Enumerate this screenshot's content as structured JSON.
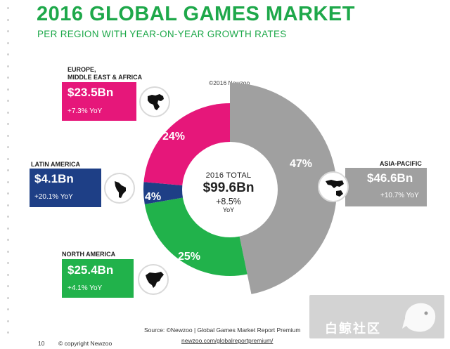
{
  "header": {
    "title": "2016 GLOBAL GAMES MARKET",
    "subtitle": "PER REGION WITH YEAR-ON-YEAR GROWTH RATES",
    "chart_copyright": "©2016 Newzoo"
  },
  "center": {
    "label": "2016 TOTAL",
    "value": "$99.6Bn",
    "growth": "+8.5%",
    "growth_unit": "YoY"
  },
  "chart_data": {
    "type": "pie",
    "title": "2016 GLOBAL GAMES MARKET",
    "subtitle": "PER REGION WITH YEAR-ON-YEAR GROWTH RATES",
    "unit": "Bn",
    "total": 99.6,
    "total_growth_pct": 8.5,
    "categories": [
      "Asia-Pacific",
      "North America",
      "Latin America",
      "Europe, Middle East & Africa"
    ],
    "values": [
      46.6,
      25.4,
      4.1,
      23.5
    ],
    "shares_pct": [
      47,
      25,
      4,
      24
    ],
    "yoy_growth_pct": [
      10.7,
      4.1,
      20.1,
      7.3
    ],
    "colors": [
      "#a0a0a0",
      "#21b24b",
      "#1e3f86",
      "#e6177a"
    ],
    "display_order_clockwise_from_top": [
      "Asia-Pacific",
      "North America",
      "Latin America",
      "Europe, Middle East & Africa"
    ],
    "donut_hole": true
  },
  "slices": {
    "apac": {
      "pct_label": "47%"
    },
    "na": {
      "pct_label": "25%"
    },
    "latam": {
      "pct_label": "4%"
    },
    "emea": {
      "pct_label": "24%"
    }
  },
  "regions": {
    "emea": {
      "name": "EUROPE,\nMIDDLE EAST & AFRICA",
      "value": "$23.5Bn",
      "yoy": "+7.3% YoY",
      "icon": "emea-map-icon"
    },
    "latam": {
      "name": "LATIN AMERICA",
      "value": "$4.1Bn",
      "yoy": "+20.1% YoY",
      "icon": "latin-america-map-icon"
    },
    "na": {
      "name": "NORTH AMERICA",
      "value": "$25.4Bn",
      "yoy": "+4.1% YoY",
      "icon": "north-america-map-icon"
    },
    "apac": {
      "name": "ASIA-PACIFIC",
      "value": "$46.6Bn",
      "yoy": "+10.7% YoY",
      "icon": "asia-pacific-map-icon"
    }
  },
  "footer": {
    "source": "Source: ©Newzoo | Global Games Market Report Premium",
    "source_url": "newzoo.com/globalreportpremium/",
    "page_number": "10",
    "copyright": "© copyright Newzoo"
  },
  "watermark": {
    "text": "白鲸社区"
  }
}
